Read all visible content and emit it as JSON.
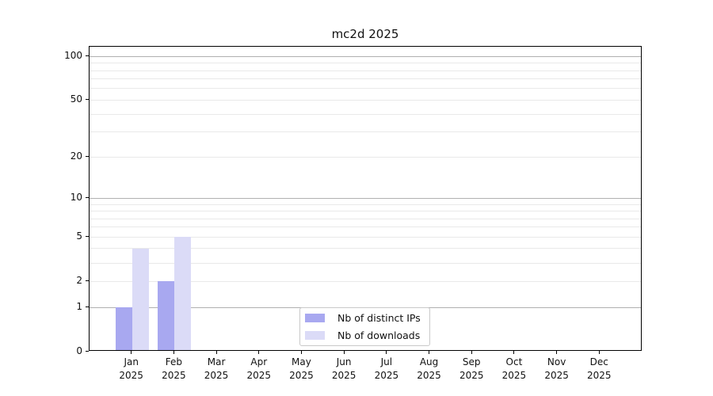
{
  "title": "mc2d 2025",
  "colors": {
    "distinct_ips": "#a8a8f0",
    "downloads": "#dbdbf7",
    "major_grid": "#b0b0b0",
    "minor_grid": "#e9e9e9",
    "axis": "#000000",
    "text": "#111111",
    "legend_border": "#c9c9c9",
    "background": "#ffffff"
  },
  "chart_data": {
    "type": "bar",
    "title": "mc2d 2025",
    "categories": [
      "Jan\n2025",
      "Feb\n2025",
      "Mar\n2025",
      "Apr\n2025",
      "May\n2025",
      "Jun\n2025",
      "Jul\n2025",
      "Aug\n2025",
      "Sep\n2025",
      "Oct\n2025",
      "Nov\n2025",
      "Dec\n2025"
    ],
    "series": [
      {
        "name": "Nb of distinct IPs",
        "color_key": "distinct_ips",
        "values": [
          1,
          2,
          0,
          0,
          0,
          0,
          0,
          0,
          0,
          0,
          0,
          0
        ]
      },
      {
        "name": "Nb of downloads",
        "color_key": "downloads",
        "values": [
          4,
          5,
          0,
          0,
          0,
          0,
          0,
          0,
          0,
          0,
          0,
          0
        ]
      }
    ],
    "xlabel": "",
    "ylabel": "",
    "y_scale": "log10(1+v)",
    "ylim": [
      0,
      116
    ],
    "y_ticks": [
      0,
      1,
      2,
      5,
      10,
      20,
      50,
      100
    ],
    "y_major_gridlines": [
      1,
      10,
      100
    ],
    "y_minor_gridlines": [
      2,
      3,
      4,
      5,
      6,
      7,
      8,
      9,
      20,
      30,
      40,
      50,
      60,
      70,
      80,
      90
    ],
    "grid": "horizontal",
    "legend_position": "lower center"
  }
}
